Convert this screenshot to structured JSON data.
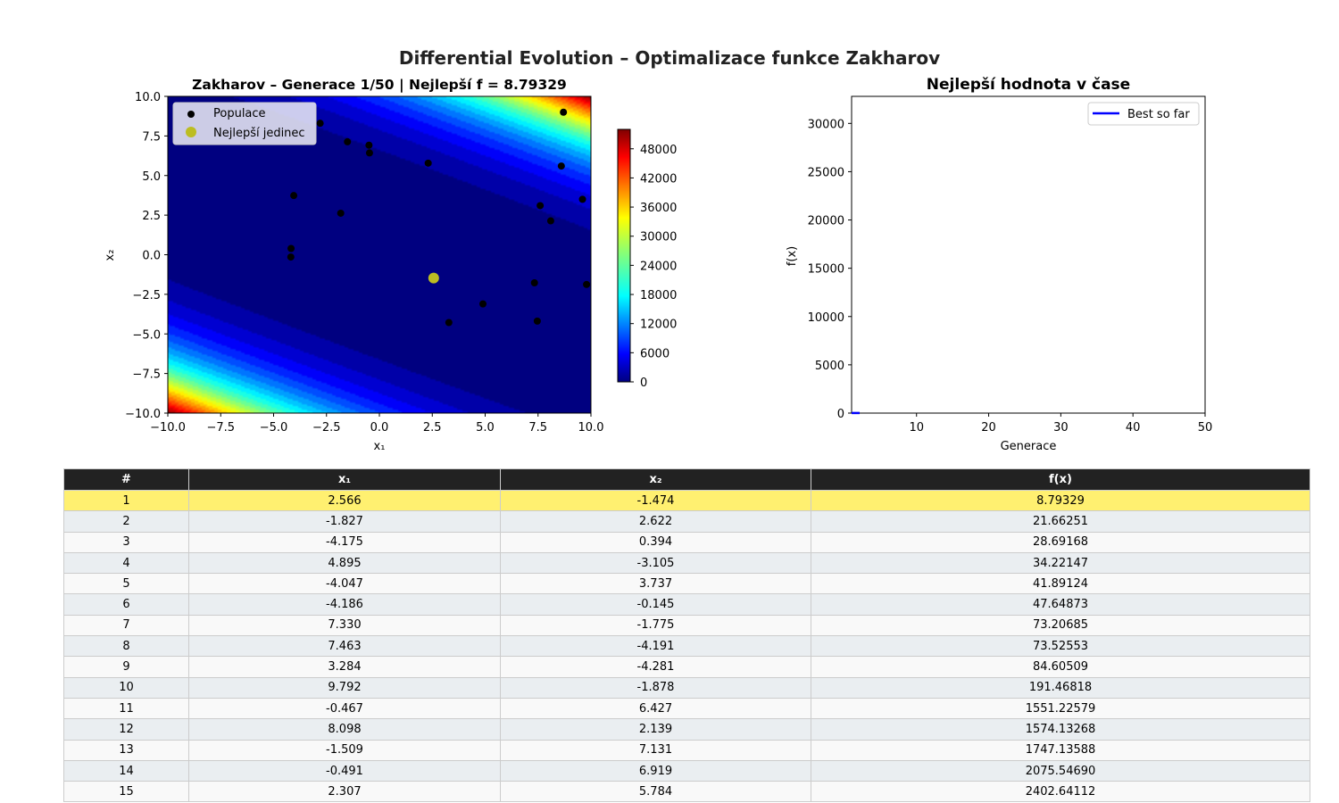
{
  "figure": {
    "suptitle": "Differential Evolution – Optimalizace funkce Zakharov"
  },
  "chart_data": [
    {
      "type": "scatter",
      "title": "Zakharov – Generace 1/50 | Nejlepší f = 8.79329",
      "xlabel": "x₁",
      "ylabel": "x₂",
      "xlim": [
        -10,
        10
      ],
      "ylim": [
        -10,
        10
      ],
      "xticks": [
        "−10.0",
        "−7.5",
        "−5.0",
        "−2.5",
        "0.0",
        "2.5",
        "5.0",
        "7.5",
        "10.0"
      ],
      "yticks": [
        "−10.0",
        "−7.5",
        "−5.0",
        "−2.5",
        "0.0",
        "2.5",
        "5.0",
        "7.5",
        "10.0"
      ],
      "background": "filled contour of Zakharov f(x₁, x₂), colormap jet",
      "colorbar": {
        "range": [
          0,
          52000
        ],
        "ticks": [
          "0",
          "6000",
          "12000",
          "18000",
          "24000",
          "30000",
          "36000",
          "42000",
          "48000"
        ]
      },
      "legend": {
        "placement": "top-left",
        "entries": [
          "Populace",
          "Nejlepší jedinec"
        ]
      },
      "series": [
        {
          "name": "Populace",
          "color": "#000000",
          "points": [
            [
              2.566,
              -1.474
            ],
            [
              -1.827,
              2.622
            ],
            [
              -4.175,
              0.394
            ],
            [
              4.895,
              -3.105
            ],
            [
              -4.047,
              3.737
            ],
            [
              -4.186,
              -0.145
            ],
            [
              7.33,
              -1.775
            ],
            [
              7.463,
              -4.191
            ],
            [
              3.284,
              -4.281
            ],
            [
              9.792,
              -1.878
            ],
            [
              -0.467,
              6.427
            ],
            [
              8.098,
              2.139
            ],
            [
              -1.509,
              7.131
            ],
            [
              -0.491,
              6.919
            ],
            [
              2.307,
              5.784
            ],
            [
              -2.8,
              8.3
            ],
            [
              8.7,
              9.0
            ],
            [
              8.6,
              5.6
            ],
            [
              7.6,
              3.1
            ],
            [
              9.6,
              3.5
            ]
          ]
        },
        {
          "name": "Nejlepší jedinec",
          "color": "#bcbd22",
          "points": [
            [
              2.566,
              -1.474
            ]
          ]
        }
      ]
    },
    {
      "type": "line",
      "title": "Nejlepší hodnota v čase",
      "xlabel": "Generace",
      "ylabel": "f(x)",
      "xlim": [
        1,
        50
      ],
      "ylim": [
        0,
        32800
      ],
      "xticks": [
        10,
        20,
        30,
        40,
        50
      ],
      "yticks": [
        0,
        5000,
        10000,
        15000,
        20000,
        25000,
        30000
      ],
      "legend": {
        "placement": "top-right",
        "entries": [
          "Best so far"
        ]
      },
      "series": [
        {
          "name": "Best so far",
          "color": "#0000ff",
          "x": [
            1
          ],
          "y": [
            8.79329
          ]
        }
      ]
    }
  ],
  "table": {
    "headers": [
      "#",
      "x₁",
      "x₂",
      "f(x)"
    ],
    "rows": [
      [
        "1",
        "2.566",
        "-1.474",
        "8.79329"
      ],
      [
        "2",
        "-1.827",
        "2.622",
        "21.66251"
      ],
      [
        "3",
        "-4.175",
        "0.394",
        "28.69168"
      ],
      [
        "4",
        "4.895",
        "-3.105",
        "34.22147"
      ],
      [
        "5",
        "-4.047",
        "3.737",
        "41.89124"
      ],
      [
        "6",
        "-4.186",
        "-0.145",
        "47.64873"
      ],
      [
        "7",
        "7.330",
        "-1.775",
        "73.20685"
      ],
      [
        "8",
        "7.463",
        "-4.191",
        "73.52553"
      ],
      [
        "9",
        "3.284",
        "-4.281",
        "84.60509"
      ],
      [
        "10",
        "9.792",
        "-1.878",
        "191.46818"
      ],
      [
        "11",
        "-0.467",
        "6.427",
        "1551.22579"
      ],
      [
        "12",
        "8.098",
        "2.139",
        "1574.13268"
      ],
      [
        "13",
        "-1.509",
        "7.131",
        "1747.13588"
      ],
      [
        "14",
        "-0.491",
        "6.919",
        "2075.54690"
      ],
      [
        "15",
        "2.307",
        "5.784",
        "2402.64112"
      ]
    ]
  }
}
